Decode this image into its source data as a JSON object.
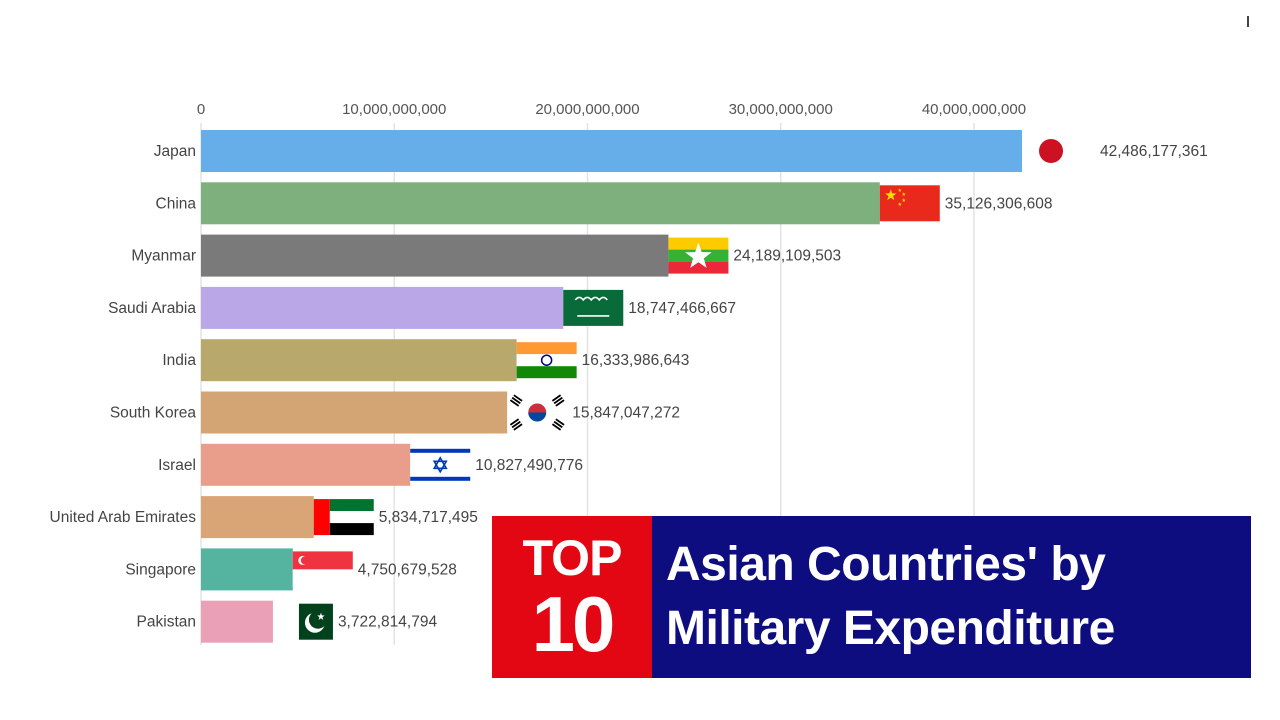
{
  "chart_data": {
    "type": "bar",
    "orientation": "horizontal",
    "categories": [
      "Japan",
      "China",
      "Myanmar",
      "Saudi Arabia",
      "India",
      "South Korea",
      "Israel",
      "United Arab Emirates",
      "Singapore",
      "Pakistan"
    ],
    "values": [
      42486177361,
      35126306608,
      24189109503,
      18747466667,
      16333986643,
      15847047272,
      10827490776,
      5834717495,
      4750679528,
      3722814794
    ],
    "value_labels": [
      "42,486,177,361",
      "35,126,306,608",
      "24,189,109,503",
      "18,747,466,667",
      "16,333,986,643",
      "15,847,047,272",
      "10,827,490,776",
      "5,834,717,495",
      "4,750,679,528",
      "3,722,814,794"
    ],
    "bar_colors": [
      "#65aeea",
      "#7db07d",
      "#7a7a7a",
      "#b9a7e7",
      "#b9a86c",
      "#d4a574",
      "#e89e8a",
      "#d9a576",
      "#55b4a0",
      "#eaa1b8"
    ],
    "flags": [
      "japan",
      "china",
      "myanmar",
      "saudi-arabia",
      "india",
      "south-korea",
      "israel",
      "uae",
      "singapore",
      "pakistan"
    ],
    "xlim": [
      0,
      42486177361
    ],
    "xticks": [
      0,
      10000000000,
      20000000000,
      30000000000,
      40000000000
    ],
    "xtick_labels": [
      "0",
      "10,000,000,000",
      "20,000,000,000",
      "30,000,000,000",
      "40,000,000,000"
    ],
    "axis_position": "top",
    "grid": true,
    "legend": "none"
  },
  "banner": {
    "top_word": "TOP",
    "top_number": "10",
    "title_line1": "Asian Countries' by",
    "title_line2": "Military Expenditure",
    "left_color": "#e30613",
    "right_color": "#0d0d80"
  }
}
